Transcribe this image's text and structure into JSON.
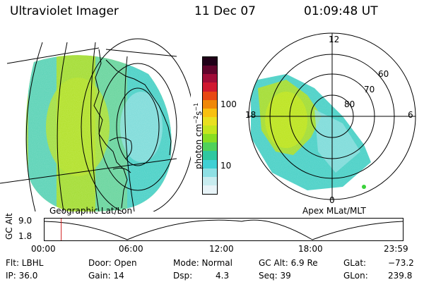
{
  "header": {
    "instrument": "Ultraviolet Imager",
    "date": "11 Dec 07",
    "time": "01:09:48 UT"
  },
  "left_panel": {
    "caption": "Geographic Lat/Lon"
  },
  "right_panel": {
    "caption": "Apex MLat/MLT",
    "mlt_labels": [
      "12",
      "18",
      "6",
      "0"
    ],
    "mlat_labels": [
      "60",
      "70",
      "80"
    ]
  },
  "colorbar": {
    "unit_label": "photon cm",
    "unit_sup1": "−2",
    "unit_mid": "s",
    "unit_sup2": "−1",
    "tick_labels": [
      "100",
      "10"
    ],
    "colors": [
      "#e8f4f8",
      "#c8ecef",
      "#8ee0e4",
      "#3fd0d4",
      "#2ec8a0",
      "#4fd25a",
      "#88de22",
      "#c4e61e",
      "#e8e020",
      "#f8c010",
      "#f08808",
      "#e84814",
      "#d01830",
      "#a00c38",
      "#60042c",
      "#200018"
    ]
  },
  "altitude_plot": {
    "ylabel": "GC Alt",
    "y_ticks": [
      "9.0",
      "1.8"
    ],
    "x_ticks": [
      "00:00",
      "06:00",
      "12:00",
      "18:00",
      "23:59"
    ],
    "marker_time_hours": 1.163
  },
  "info": {
    "flt_label": "Flt: LBHL",
    "ip_label": "IP: 36.0",
    "door_label": "Door: Open",
    "gain_label": "Gain: 14",
    "mode_label": "Mode: Normal",
    "dsp_label": "Dsp:",
    "dsp_value": "4.3",
    "gcalt_label": "GC Alt: 6.9 Re",
    "seq_label": "Seq: 39",
    "glat_label": "GLat:",
    "glat_value": "−73.2",
    "glon_label": "GLon:",
    "glon_value": "239.8"
  }
}
